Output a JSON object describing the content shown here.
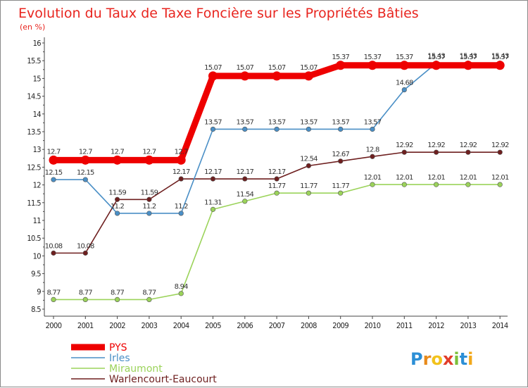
{
  "chart_data": {
    "type": "line",
    "title": "Evolution du Taux de Taxe Foncière sur les Propriétés Bâties",
    "subtitle": "(en %)",
    "x": [
      "2000",
      "2001",
      "2002",
      "2003",
      "2004",
      "2005",
      "2006",
      "2007",
      "2008",
      "2009",
      "2010",
      "2011",
      "2012",
      "2013",
      "2014"
    ],
    "ylim": [
      8.5,
      16
    ],
    "yticks": [
      "8.5",
      "9",
      "9.5",
      "10",
      "10.5",
      "11",
      "11.5",
      "12",
      "12.5",
      "13",
      "13.5",
      "14",
      "14.5",
      "15",
      "15.5",
      "16"
    ],
    "series": [
      {
        "name": "PYS",
        "color": "#ee0000",
        "values": [
          12.7,
          12.7,
          12.7,
          12.7,
          12.7,
          15.07,
          15.07,
          15.07,
          15.07,
          15.37,
          15.37,
          15.37,
          15.37,
          15.37,
          15.37
        ],
        "labels": [
          "12.7",
          "12.7",
          "12.7",
          "12.7",
          "12.7",
          "15.07",
          "15.07",
          "15.07",
          "15.07",
          "15.37",
          "15.37",
          "15.37",
          "15.37",
          "15.37",
          "15.37"
        ]
      },
      {
        "name": "Irles",
        "color": "#4a8fc6",
        "values": [
          12.15,
          12.15,
          11.2,
          11.2,
          11.2,
          13.57,
          13.57,
          13.57,
          13.57,
          13.57,
          13.57,
          14.68,
          15.43,
          15.43,
          15.43
        ],
        "labels": [
          "12.15",
          "12.15",
          "11.2",
          "11.2",
          "11.2",
          "13.57",
          "13.57",
          "13.57",
          "13.57",
          "13.57",
          "13.57",
          "14.68",
          "15.43",
          "15.43",
          "15.43"
        ]
      },
      {
        "name": "Miraumont",
        "color": "#9bd35a",
        "values": [
          8.77,
          8.77,
          8.77,
          8.77,
          8.94,
          11.31,
          11.54,
          11.77,
          11.77,
          11.77,
          12.01,
          12.01,
          12.01,
          12.01,
          12.01
        ],
        "labels": [
          "8.77",
          "8.77",
          "8.77",
          "8.77",
          "8.94",
          "11.31",
          "11.54",
          "11.77",
          "11.77",
          "11.77",
          "12.01",
          "12.01",
          "12.01",
          "12.01",
          "12.01"
        ]
      },
      {
        "name": "Warlencourt-Eaucourt",
        "color": "#6e1f1f",
        "values": [
          10.08,
          10.08,
          11.59,
          11.59,
          12.17,
          12.17,
          12.17,
          12.17,
          12.54,
          12.67,
          12.8,
          12.92,
          12.92,
          12.92,
          12.92
        ],
        "labels": [
          "10.08",
          "10.08",
          "11.59",
          "11.59",
          "12.17",
          "12.17",
          "12.17",
          "12.17",
          "12.54",
          "12.67",
          "12.8",
          "12.92",
          "12.92",
          "12.92",
          "12.92"
        ]
      }
    ],
    "legend_position": "bottom-left",
    "grid": false
  },
  "logo": {
    "text": "Proxiti",
    "letters": [
      "P",
      "r",
      "o",
      "x",
      "i",
      "t",
      "i"
    ],
    "colors": [
      "#2c8fd6",
      "#e88a1a",
      "#f2c21b",
      "#e23c2a",
      "#7cbf3a",
      "#2c8fd6",
      "#f2a81b"
    ]
  }
}
